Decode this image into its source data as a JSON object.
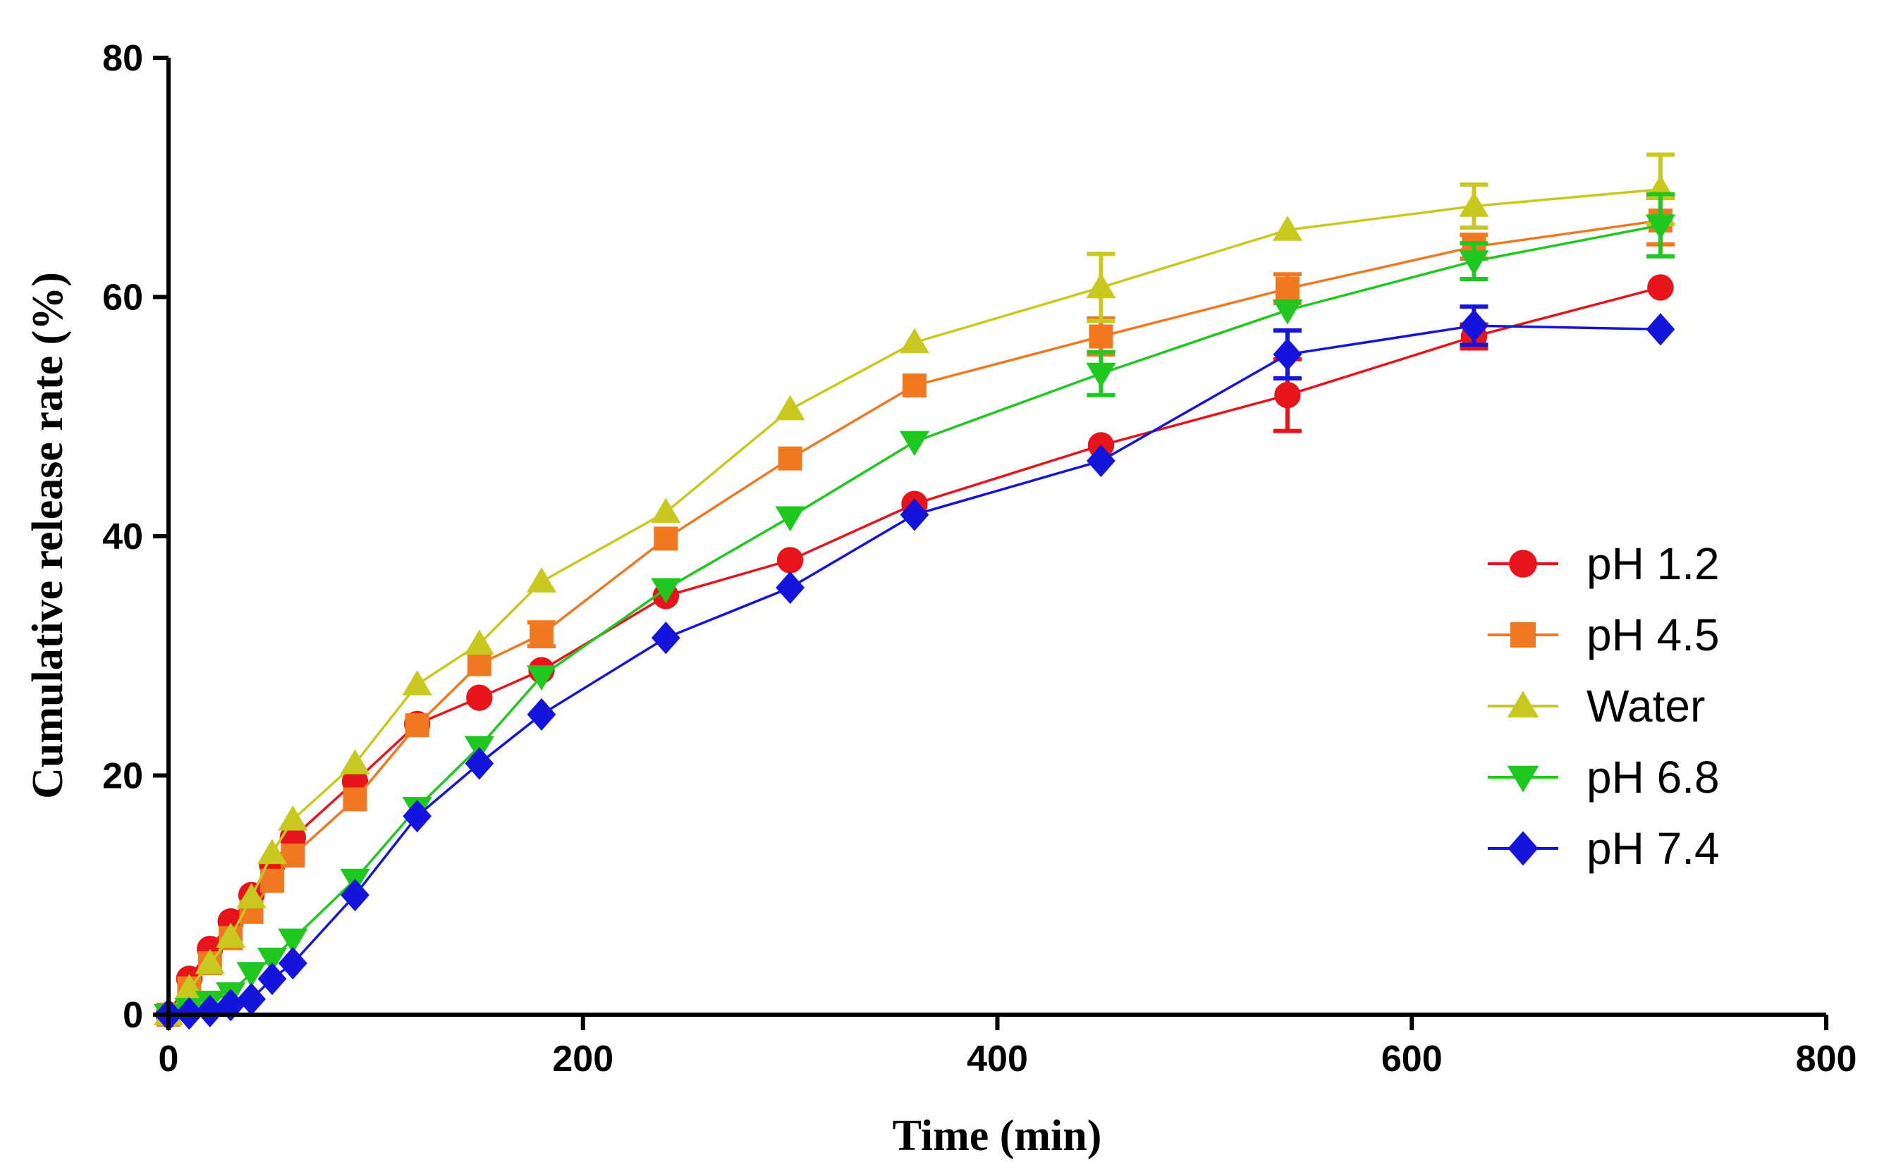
{
  "chart_data": {
    "type": "line",
    "title": "",
    "xlabel": "Time (min)",
    "ylabel": "Cumulative release rate (%)",
    "xlim": [
      0,
      800
    ],
    "ylim": [
      0,
      80
    ],
    "xticks": [
      0,
      200,
      400,
      600,
      800
    ],
    "yticks": [
      0,
      20,
      40,
      60,
      80
    ],
    "x_tick_labels": [
      "0",
      "200",
      "400",
      "600",
      "800"
    ],
    "y_tick_labels": [
      "0",
      "20",
      "40",
      "60",
      "80"
    ],
    "grid": false,
    "legend_position": "right",
    "series": [
      {
        "name": "pH 1.2",
        "color": "#e8141c",
        "marker": "circle",
        "x": [
          0,
          10,
          20,
          30,
          40,
          50,
          60,
          90,
          120,
          150,
          180,
          240,
          300,
          360,
          450,
          540,
          630,
          720
        ],
        "y": [
          0,
          3,
          5.5,
          7.8,
          10,
          12.5,
          14.8,
          19.5,
          24.3,
          26.5,
          28.8,
          35,
          38,
          42.7,
          47.6,
          51.8,
          56.7,
          60.8
        ],
        "err": [
          0,
          0,
          0,
          0,
          0,
          0,
          0,
          0,
          0,
          0,
          0,
          0,
          0,
          0,
          0,
          3,
          1,
          0
        ]
      },
      {
        "name": "pH 4.5",
        "color": "#f07820",
        "marker": "square",
        "x": [
          0,
          10,
          20,
          30,
          40,
          50,
          60,
          90,
          120,
          150,
          180,
          240,
          300,
          360,
          450,
          540,
          630,
          720
        ],
        "y": [
          0,
          2.2,
          4.3,
          6.4,
          8.6,
          11.2,
          13.3,
          18,
          24.2,
          29.3,
          31.8,
          39.8,
          46.5,
          52.6,
          56.7,
          60.7,
          64.2,
          66.4
        ],
        "err": [
          0,
          0,
          0,
          0,
          0,
          0,
          0,
          0,
          0,
          0,
          1,
          0,
          0,
          0,
          1.5,
          1.2,
          1,
          2
        ]
      },
      {
        "name": "Water",
        "color": "#c8c81e",
        "marker": "triangle-up",
        "x": [
          0,
          10,
          20,
          30,
          40,
          50,
          60,
          90,
          120,
          150,
          180,
          240,
          300,
          360,
          450,
          540,
          630,
          720
        ],
        "y": [
          0,
          2.2,
          4.3,
          6.5,
          9.8,
          13.5,
          16.3,
          21,
          27.6,
          31,
          36.2,
          42,
          50.6,
          56.2,
          60.8,
          65.6,
          67.6,
          69
        ],
        "err": [
          0,
          0,
          0,
          0,
          0,
          0,
          0,
          0,
          0,
          0,
          0,
          0,
          0,
          0,
          2.8,
          0,
          1.8,
          2.9
        ]
      },
      {
        "name": "pH 6.8",
        "color": "#1ec81e",
        "marker": "triangle-down",
        "x": [
          0,
          10,
          20,
          30,
          40,
          50,
          60,
          90,
          120,
          150,
          180,
          240,
          300,
          360,
          450,
          540,
          630,
          720
        ],
        "y": [
          0,
          0.5,
          1.1,
          1.8,
          3.5,
          4.7,
          6.3,
          11.3,
          17.3,
          22.4,
          28.3,
          35.6,
          41.6,
          47.9,
          53.6,
          58.9,
          63,
          66
        ],
        "err": [
          0,
          0,
          0,
          0,
          0,
          0,
          0,
          0,
          0,
          0,
          0,
          0,
          0,
          0,
          1.8,
          0,
          1.5,
          2.6
        ]
      },
      {
        "name": "pH 7.4",
        "color": "#1414dc",
        "marker": "diamond",
        "x": [
          0,
          10,
          20,
          30,
          40,
          50,
          60,
          90,
          120,
          150,
          180,
          240,
          300,
          360,
          450,
          540,
          630,
          720
        ],
        "y": [
          0,
          0.1,
          0.3,
          0.8,
          1.3,
          3,
          4.3,
          10,
          16.6,
          21,
          25.1,
          31.5,
          35.7,
          41.8,
          46.3,
          55.2,
          57.6,
          57.3
        ],
        "err": [
          0,
          0,
          0,
          0,
          0,
          0,
          0,
          0,
          0,
          0,
          0,
          0,
          0,
          0,
          0,
          2,
          1.6,
          0
        ]
      }
    ]
  }
}
